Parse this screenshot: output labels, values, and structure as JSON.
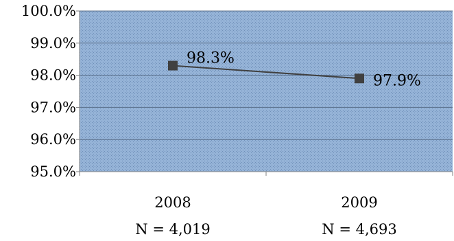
{
  "chart_data": {
    "type": "line",
    "title": "",
    "xlabel": "",
    "ylabel": "",
    "categories": [
      "2008",
      "2009"
    ],
    "category_sublabels": [
      "N = 4,019",
      "N = 4,693"
    ],
    "ylim": [
      95.0,
      100.0
    ],
    "yticks": [
      95.0,
      96.0,
      97.0,
      98.0,
      99.0,
      100.0
    ],
    "ytick_labels": [
      "95.0%",
      "96.0%",
      "97.0%",
      "98.0%",
      "99.0%",
      "100.0%"
    ],
    "grid": true,
    "legend": "none",
    "series": [
      {
        "values": [
          98.3,
          97.9
        ],
        "data_labels": [
          "98.3%",
          "97.9%"
        ],
        "color": "#404040",
        "marker": "square"
      }
    ],
    "colors": {
      "plot_background": "#95b3d7",
      "gridline": "#5a6f8a",
      "axis": "#808080"
    }
  }
}
